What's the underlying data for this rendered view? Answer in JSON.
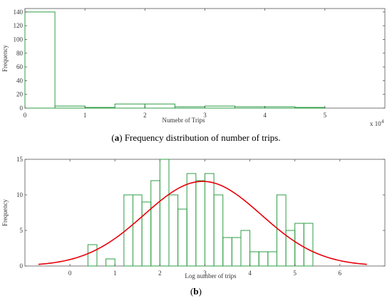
{
  "colors": {
    "bars": "#2e9e45",
    "curve": "#e8000b",
    "axis": "#555555",
    "background": "#ffffff"
  },
  "captions": {
    "a_letter": "a",
    "a_text": " Frequency distribution of number of trips.",
    "b_letter": "b"
  },
  "chart_data": [
    {
      "type": "histogram",
      "panel": "a",
      "xlabel": "Numebr of Trips",
      "ylabel": "Frequency",
      "xlim": [
        0,
        60000
      ],
      "ylim": [
        0,
        145
      ],
      "x_ticks": [
        0,
        1,
        2,
        3,
        4,
        5
      ],
      "y_ticks": [
        0,
        20,
        40,
        60,
        80,
        100,
        120,
        140
      ],
      "exponent_label": "x 10",
      "exponent_power": "4",
      "bin_width": 5000,
      "bins": [
        {
          "x0": 0,
          "x1": 5000,
          "value": 140
        },
        {
          "x0": 5000,
          "x1": 10000,
          "value": 3
        },
        {
          "x0": 10000,
          "x1": 15000,
          "value": 1
        },
        {
          "x0": 15000,
          "x1": 20000,
          "value": 6
        },
        {
          "x0": 20000,
          "x1": 25000,
          "value": 6
        },
        {
          "x0": 25000,
          "x1": 30000,
          "value": 2
        },
        {
          "x0": 30000,
          "x1": 35000,
          "value": 3
        },
        {
          "x0": 35000,
          "x1": 40000,
          "value": 2
        },
        {
          "x0": 40000,
          "x1": 45000,
          "value": 2
        },
        {
          "x0": 45000,
          "x1": 50000,
          "value": 1
        }
      ]
    },
    {
      "type": "histogram",
      "panel": "b",
      "xlabel": "Log number of trips",
      "ylabel": "Frequency",
      "xlim": [
        -1,
        7
      ],
      "ylim": [
        0,
        15
      ],
      "x_ticks": [
        0,
        1,
        2,
        3,
        4,
        5,
        6
      ],
      "y_ticks": [
        0,
        5,
        10,
        15
      ],
      "bin_width": 0.2,
      "bins": [
        {
          "x0": 0.4,
          "x1": 0.6,
          "value": 3
        },
        {
          "x0": 0.6,
          "x1": 0.8,
          "value": 0
        },
        {
          "x0": 0.8,
          "x1": 1.0,
          "value": 1
        },
        {
          "x0": 1.0,
          "x1": 1.2,
          "value": 0
        },
        {
          "x0": 1.2,
          "x1": 1.4,
          "value": 10
        },
        {
          "x0": 1.4,
          "x1": 1.6,
          "value": 10
        },
        {
          "x0": 1.6,
          "x1": 1.8,
          "value": 9
        },
        {
          "x0": 1.8,
          "x1": 2.0,
          "value": 12
        },
        {
          "x0": 2.0,
          "x1": 2.2,
          "value": 15
        },
        {
          "x0": 2.2,
          "x1": 2.4,
          "value": 10
        },
        {
          "x0": 2.4,
          "x1": 2.6,
          "value": 8
        },
        {
          "x0": 2.6,
          "x1": 2.8,
          "value": 13
        },
        {
          "x0": 2.8,
          "x1": 3.0,
          "value": 12
        },
        {
          "x0": 3.0,
          "x1": 3.2,
          "value": 13
        },
        {
          "x0": 3.2,
          "x1": 3.4,
          "value": 10
        },
        {
          "x0": 3.4,
          "x1": 3.6,
          "value": 4
        },
        {
          "x0": 3.6,
          "x1": 3.8,
          "value": 4
        },
        {
          "x0": 3.8,
          "x1": 4.0,
          "value": 5
        },
        {
          "x0": 4.0,
          "x1": 4.2,
          "value": 2
        },
        {
          "x0": 4.2,
          "x1": 4.4,
          "value": 2
        },
        {
          "x0": 4.4,
          "x1": 4.6,
          "value": 2
        },
        {
          "x0": 4.6,
          "x1": 4.8,
          "value": 10
        },
        {
          "x0": 4.8,
          "x1": 5.0,
          "value": 5
        },
        {
          "x0": 5.0,
          "x1": 5.2,
          "value": 6
        },
        {
          "x0": 5.2,
          "x1": 5.4,
          "value": 6
        }
      ],
      "fit_curve": {
        "type": "normal",
        "mean": 2.95,
        "peak": 11.9,
        "sd": 1.3
      }
    }
  ]
}
